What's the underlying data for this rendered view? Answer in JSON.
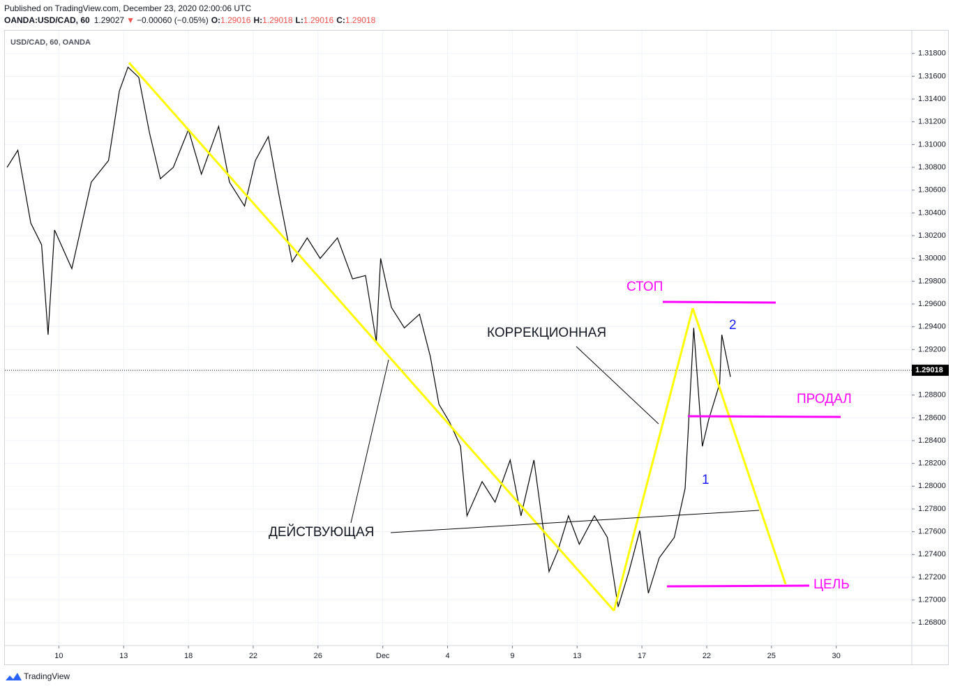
{
  "header": {
    "published": "Published on TradingView.com, December 23, 2020 02:00:06 UTC",
    "symbol": "OANDA:USD/CAD, 60",
    "price": "1.29027",
    "arrow": "▼",
    "change": "−0.00060 (−0.05%)",
    "o_label": "O:",
    "o": "1.29016",
    "h_label": "H:",
    "h": "1.29018",
    "l_label": "L:",
    "l": "1.29016",
    "c_label": "C:",
    "c": "1.29018"
  },
  "footer": "TradingView",
  "chart_data": {
    "type": "line",
    "title": "USD/CAD, 60, OANDA",
    "x": [
      -2.4,
      -1.9,
      -1.3,
      -0.8,
      -0.5,
      -0.2,
      0.6,
      1.5,
      2.3,
      2.8,
      3.2,
      3.7,
      4.2,
      4.7,
      5.3,
      6.0,
      6.6,
      7.4,
      7.9,
      8.6,
      9.1,
      9.7,
      10.2,
      10.8,
      11.5,
      12.1,
      12.9,
      13.6,
      14.2,
      14.7,
      14.9,
      15.4,
      16.0,
      16.7,
      17.2,
      17.6,
      18.1,
      18.6,
      18.9,
      19.6,
      20.2,
      20.9,
      21.4,
      22.0,
      22.7,
      23.1,
      23.6,
      24.1,
      24.8,
      25.4,
      25.9,
      26.4,
      26.9,
      27.3,
      27.8,
      28.5,
      29.0,
      29.4,
      29.8,
      30.1,
      30.6,
      30.7,
      31.1
    ],
    "series": [
      {
        "name": "USD/CAD",
        "color": "#000000",
        "values": [
          1.308,
          1.3095,
          1.3031,
          1.3012,
          1.2933,
          1.3025,
          1.2991,
          1.3067,
          1.3086,
          1.3147,
          1.3168,
          1.3159,
          1.311,
          1.307,
          1.308,
          1.3113,
          1.3074,
          1.3116,
          1.3067,
          1.3046,
          1.3086,
          1.3107,
          1.3055,
          1.2997,
          1.3018,
          1.3,
          1.3018,
          1.2982,
          1.2985,
          1.2927,
          1.3,
          1.2957,
          1.2939,
          1.2951,
          1.2914,
          1.2872,
          1.2856,
          1.2835,
          1.2774,
          1.2804,
          1.2786,
          1.2823,
          1.2774,
          1.2823,
          1.2725,
          1.2743,
          1.2774,
          1.2749,
          1.2774,
          1.2755,
          1.2694,
          1.2725,
          1.2761,
          1.2706,
          1.2737,
          1.2755,
          1.2798,
          1.2939,
          1.2835,
          1.2859,
          1.289,
          1.2933,
          1.2896
        ]
      }
    ],
    "xlim": [
      -2.5,
      39.5
    ],
    "xticks": [
      {
        "value": 0,
        "label": "10"
      },
      {
        "value": 3,
        "label": "13"
      },
      {
        "value": 6,
        "label": "18"
      },
      {
        "value": 9,
        "label": "22"
      },
      {
        "value": 12,
        "label": "26"
      },
      {
        "value": 15,
        "label": "Dec"
      },
      {
        "value": 18,
        "label": "4"
      },
      {
        "value": 21,
        "label": "9"
      },
      {
        "value": 24,
        "label": "13"
      },
      {
        "value": 27,
        "label": "17"
      },
      {
        "value": 30,
        "label": "22"
      },
      {
        "value": 33,
        "label": "25"
      },
      {
        "value": 36,
        "label": "30"
      }
    ],
    "ylim": [
      1.266,
      1.3189
    ],
    "yticks": [
      {
        "value": 1.268,
        "label": "1.26800"
      },
      {
        "value": 1.27,
        "label": "1.27000"
      },
      {
        "value": 1.272,
        "label": "1.27200"
      },
      {
        "value": 1.274,
        "label": "1.27400"
      },
      {
        "value": 1.276,
        "label": "1.27600"
      },
      {
        "value": 1.278,
        "label": "1.27800"
      },
      {
        "value": 1.28,
        "label": "1.28000"
      },
      {
        "value": 1.282,
        "label": "1.28200"
      },
      {
        "value": 1.284,
        "label": "1.28400"
      },
      {
        "value": 1.286,
        "label": "1.28600"
      },
      {
        "value": 1.288,
        "label": "1.28800"
      },
      {
        "value": 1.29,
        "label": "1.29000"
      },
      {
        "value": 1.292,
        "label": "1.29200"
      },
      {
        "value": 1.294,
        "label": "1.29400"
      },
      {
        "value": 1.296,
        "label": "1.29600"
      },
      {
        "value": 1.298,
        "label": "1.29800"
      },
      {
        "value": 1.3,
        "label": "1.30000"
      },
      {
        "value": 1.302,
        "label": "1.30200"
      },
      {
        "value": 1.304,
        "label": "1.30400"
      },
      {
        "value": 1.306,
        "label": "1.30600"
      },
      {
        "value": 1.308,
        "label": "1.30800"
      },
      {
        "value": 1.31,
        "label": "1.31000"
      },
      {
        "value": 1.312,
        "label": "1.31200"
      },
      {
        "value": 1.314,
        "label": "1.31400"
      },
      {
        "value": 1.316,
        "label": "1.31600"
      },
      {
        "value": 1.318,
        "label": "1.31800"
      }
    ],
    "grid": true,
    "last_price": 1.29018,
    "annotations": [
      "СТОП",
      "КОРРЕКЦИОННАЯ",
      "2",
      "ПРОДАЛ",
      "1",
      "ДЕЙСТВУЮЩАЯ",
      "ЦЕЛЬ"
    ]
  }
}
